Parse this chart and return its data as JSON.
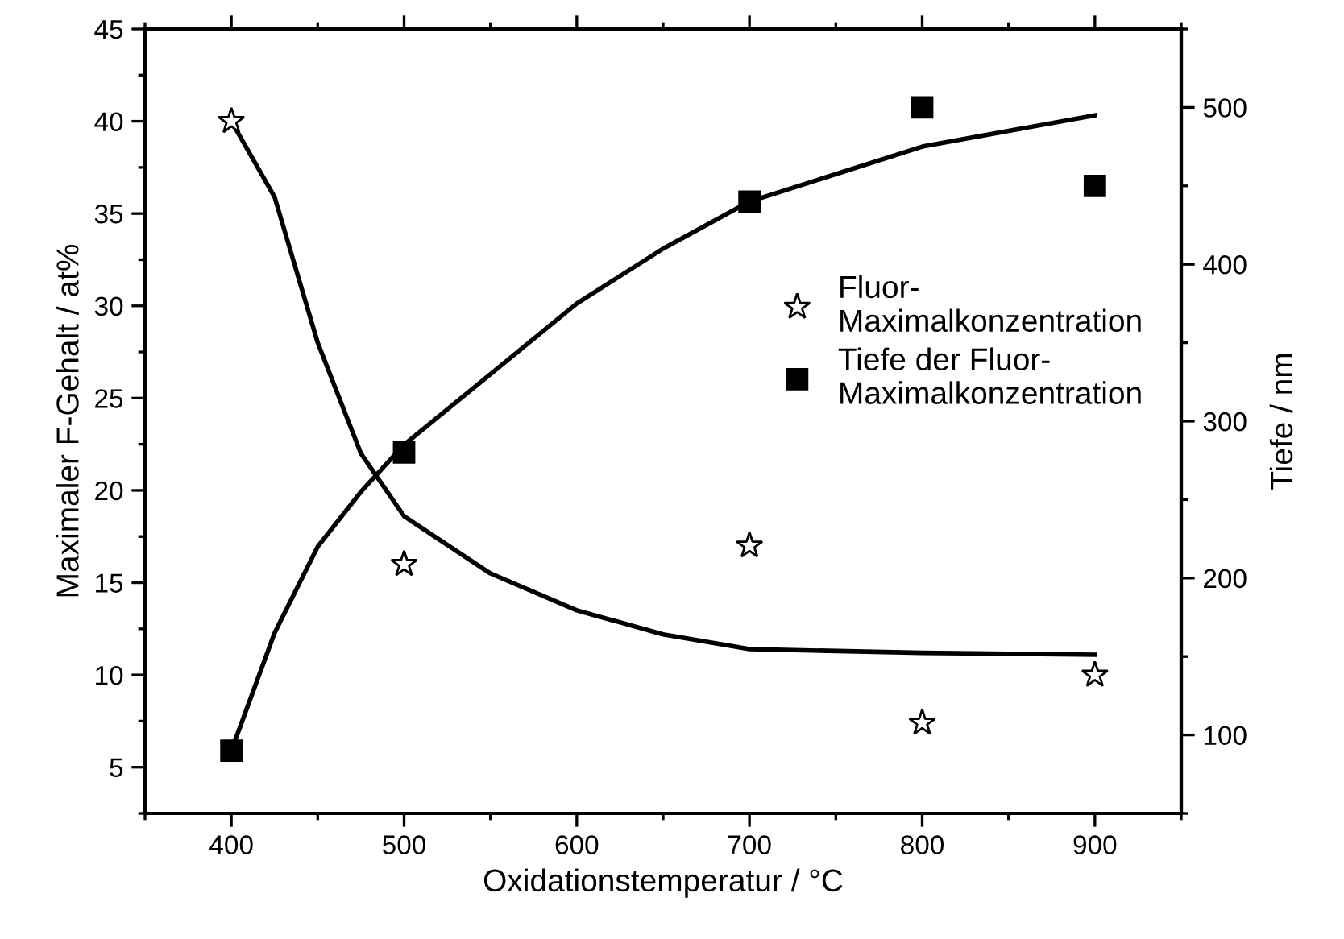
{
  "chart_data": {
    "type": "scatter",
    "xlabel": "Oxidationstemperatur / °C",
    "ylabel": "Maximaler F-Gehalt / at%",
    "y2label": "Tiefe / nm",
    "xlim": [
      350,
      950
    ],
    "xticks": [
      400,
      500,
      600,
      700,
      800,
      900
    ],
    "ylim": [
      2.5,
      45
    ],
    "yticks": [
      5,
      10,
      15,
      20,
      25,
      30,
      35,
      40,
      45
    ],
    "y2lim": [
      50,
      550
    ],
    "y2ticks": [
      100,
      200,
      300,
      400,
      500
    ],
    "legend": "right",
    "grid": false,
    "series": [
      {
        "name": "Fluor-\nMaximalkonzentration",
        "marker": "star",
        "color": "#000000",
        "x": [
          400,
          500,
          700,
          800,
          900
        ],
        "values": [
          40,
          16,
          17,
          7.4,
          10
        ]
      },
      {
        "name": "Tiefe der Fluor-\nMaximalkonzentration",
        "marker": "square",
        "color": "#000000",
        "axis": "y2",
        "x": [
          400,
          500,
          700,
          800,
          900
        ],
        "values": [
          90,
          280,
          440,
          500,
          450
        ]
      },
      {
        "type": "line",
        "marker": "none",
        "color": "#000000",
        "x": [
          400,
          425,
          450,
          475,
          500,
          550,
          600,
          650,
          700,
          800,
          900
        ],
        "values": [
          40,
          35.9,
          28,
          22,
          18.6,
          15.5,
          13.5,
          12.2,
          11.4,
          11.2,
          11.1
        ]
      },
      {
        "type": "line",
        "marker": "none",
        "color": "#000000",
        "axis": "y2",
        "x": [
          400,
          425,
          450,
          475,
          500,
          550,
          600,
          650,
          700,
          800,
          900
        ],
        "values": [
          90,
          165,
          220,
          255,
          285,
          330,
          375,
          410,
          440,
          475,
          495
        ]
      }
    ]
  }
}
